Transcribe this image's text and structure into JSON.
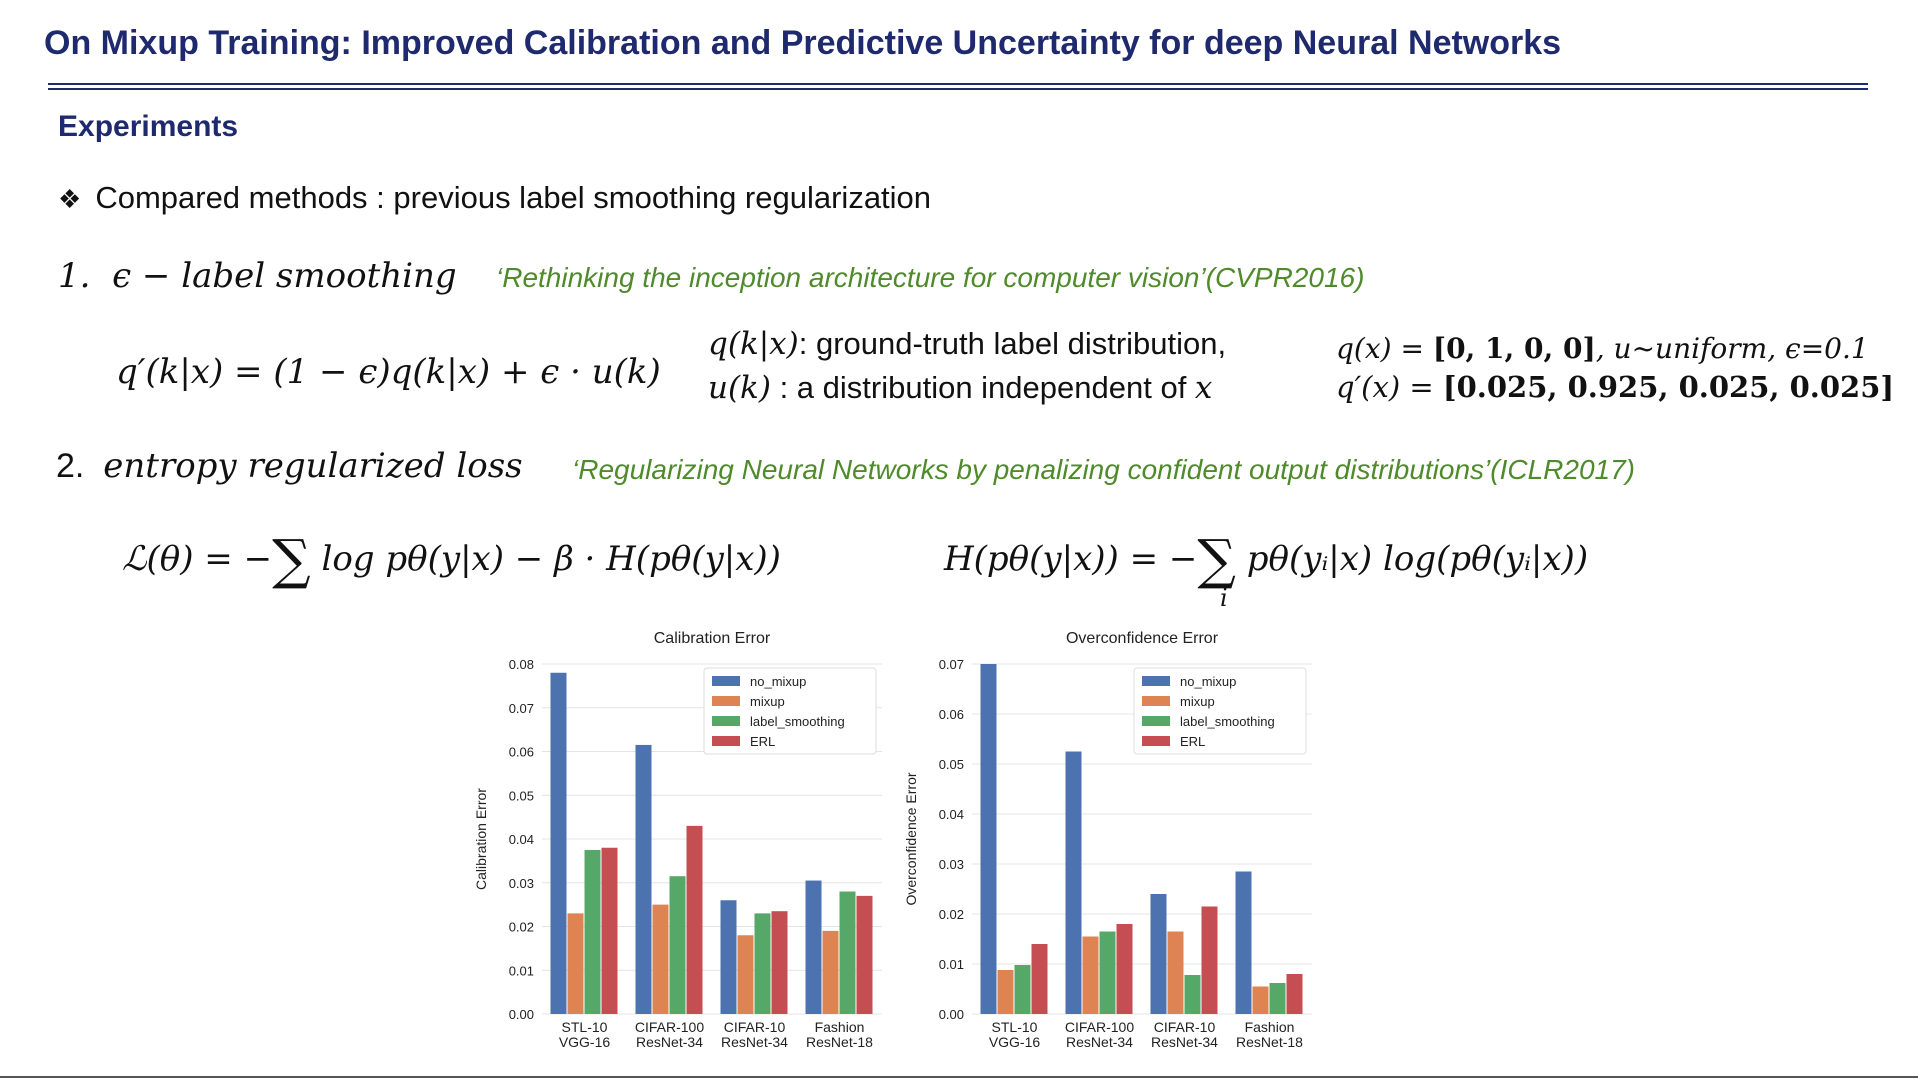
{
  "slide": {
    "title": "On Mixup Training: Improved Calibration and Predictive Uncertainty for deep Neural Networks",
    "section": "Experiments",
    "bullet": "Compared methods : previous label smoothing regularization"
  },
  "methods": [
    {
      "number": "1.",
      "name": "ϵ − label smoothing",
      "reference": "‘Rethinking the inception architecture for computer vision’(CVPR2016)",
      "equation": "q′(k|x) = (1 − ϵ)q(k|x) + ϵ · u(k)",
      "note_q_sym": "q(k|x)",
      "note_q_text": ": ground-truth label distribution,",
      "note_u_sym": "u(k)",
      "note_u_text": " : a distribution independent of ",
      "note_u_x": "x",
      "example_q_lhs": "q(x) = ",
      "example_q_vec": "[0, 1, 0, 0]",
      "example_q_tail": ", u~uniform, ϵ=0.1",
      "example_qp_lhs": "q′(x) = ",
      "example_qp_vec": "[0.025, 0.925, 0.025, 0.025]"
    },
    {
      "number": "2.",
      "name": "entropy regularized loss",
      "reference": "‘Regularizing Neural Networks by penalizing confident output distributions’(ICLR2017)",
      "equation_lhs": "ℒ(θ) = −",
      "equation_rhs": "log pθ(y|x) − β · H(pθ(y|x))",
      "entropy_lhs": "H(pθ(y|x)) = −",
      "entropy_rhs": "pθ(yᵢ|x) log(pθ(yᵢ|x))",
      "entropy_index": "i"
    }
  ],
  "symbols": {
    "sum": "∑",
    "bullet_glyph": "❖"
  },
  "chart_data": [
    {
      "type": "bar",
      "title": "Calibration Error",
      "ylabel": "Calibration Error",
      "xlabel": "",
      "ylim": [
        0,
        0.08
      ],
      "yticks": [
        "0.00",
        "0.01",
        "0.02",
        "0.03",
        "0.04",
        "0.05",
        "0.06",
        "0.07",
        "0.08"
      ],
      "categories": [
        [
          "STL-10",
          "VGG-16"
        ],
        [
          "CIFAR-100",
          "ResNet-34"
        ],
        [
          "CIFAR-10",
          "ResNet-34"
        ],
        [
          "Fashion",
          "ResNet-18"
        ]
      ],
      "legend_position": "top-right",
      "grid": true,
      "series": [
        {
          "name": "no_mixup",
          "color": "#4c72b0",
          "values": [
            0.078,
            0.0615,
            0.026,
            0.0305
          ]
        },
        {
          "name": "mixup",
          "color": "#dd8452",
          "values": [
            0.023,
            0.025,
            0.018,
            0.019
          ]
        },
        {
          "name": "label_smoothing",
          "color": "#55a868",
          "values": [
            0.0375,
            0.0315,
            0.023,
            0.028
          ]
        },
        {
          "name": "ERL",
          "color": "#c44e52",
          "values": [
            0.038,
            0.043,
            0.0235,
            0.027
          ]
        }
      ]
    },
    {
      "type": "bar",
      "title": "Overconfidence Error",
      "ylabel": "Overconfidence Error",
      "xlabel": "",
      "ylim": [
        0,
        0.07
      ],
      "yticks": [
        "0.00",
        "0.01",
        "0.02",
        "0.03",
        "0.04",
        "0.05",
        "0.06",
        "0.07"
      ],
      "categories": [
        [
          "STL-10",
          "VGG-16"
        ],
        [
          "CIFAR-100",
          "ResNet-34"
        ],
        [
          "CIFAR-10",
          "ResNet-34"
        ],
        [
          "Fashion",
          "ResNet-18"
        ]
      ],
      "legend_position": "top-right",
      "grid": true,
      "series": [
        {
          "name": "no_mixup",
          "color": "#4c72b0",
          "values": [
            0.07,
            0.0525,
            0.024,
            0.0285
          ]
        },
        {
          "name": "mixup",
          "color": "#dd8452",
          "values": [
            0.0088,
            0.0155,
            0.0165,
            0.0055
          ]
        },
        {
          "name": "label_smoothing",
          "color": "#55a868",
          "values": [
            0.0098,
            0.0165,
            0.0078,
            0.0062
          ]
        },
        {
          "name": "ERL",
          "color": "#c44e52",
          "values": [
            0.014,
            0.018,
            0.0215,
            0.008
          ]
        }
      ]
    }
  ]
}
